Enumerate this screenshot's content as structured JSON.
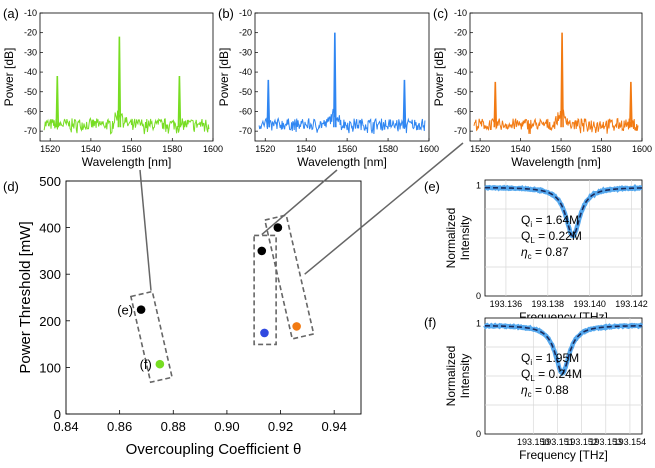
{
  "panels": {
    "a": "(a)",
    "b": "(b)",
    "c": "(c)",
    "d": "(d)",
    "e": "(e)",
    "f": "(f)"
  },
  "colors": {
    "a": "#77dd22",
    "b": "#2f86f2",
    "c": "#f27a12",
    "fit": "#1a2a5a",
    "measured": "#55a8ee"
  },
  "chart_data": [
    {
      "id": "spectrum_a",
      "panel": "(a)",
      "type": "line",
      "xlabel": "Wavelength [nm]",
      "ylabel": "Power [dB]",
      "xlim": [
        1515,
        1600
      ],
      "ylim": [
        -75,
        -10
      ],
      "xticks": [
        1520,
        1540,
        1560,
        1580,
        1600
      ],
      "yticks": [
        -10,
        -20,
        -30,
        -40,
        -50,
        -60,
        -70
      ],
      "noise_floor": -70,
      "peaks": [
        {
          "x": 1523.5,
          "y": -42
        },
        {
          "x": 1554,
          "y": -22
        },
        {
          "x": 1583.5,
          "y": -42
        }
      ],
      "color": "#77dd22"
    },
    {
      "id": "spectrum_b",
      "panel": "(b)",
      "type": "line",
      "xlabel": "Wavelength [nm]",
      "ylabel": "Power [dB]",
      "xlim": [
        1515,
        1600
      ],
      "ylim": [
        -75,
        -10
      ],
      "xticks": [
        1520,
        1540,
        1560,
        1580,
        1600
      ],
      "yticks": [
        -10,
        -20,
        -30,
        -40,
        -50,
        -60,
        -70
      ],
      "noise_floor": -70,
      "peaks": [
        {
          "x": 1521.5,
          "y": -44
        },
        {
          "x": 1554,
          "y": -20
        },
        {
          "x": 1588,
          "y": -44
        }
      ],
      "color": "#2f86f2"
    },
    {
      "id": "spectrum_c",
      "panel": "(c)",
      "type": "line",
      "xlabel": "Wavelength [nm]",
      "ylabel": "Power [dB]",
      "xlim": [
        1515,
        1600
      ],
      "ylim": [
        -75,
        -10
      ],
      "xticks": [
        1520,
        1540,
        1560,
        1580,
        1600
      ],
      "yticks": [
        -10,
        -20,
        -30,
        -40,
        -50,
        -60,
        -70
      ],
      "noise_floor": -70,
      "peaks": [
        {
          "x": 1527.5,
          "y": -45
        },
        {
          "x": 1560.5,
          "y": -20
        },
        {
          "x": 1594.5,
          "y": -45
        }
      ],
      "color": "#f27a12"
    },
    {
      "id": "threshold_vs_overcoupling",
      "panel": "(d)",
      "type": "scatter",
      "xlabel": "Overcoupling Coefficient θ",
      "ylabel": "Power Threshold [mW]",
      "xlim": [
        0.84,
        0.95
      ],
      "ylim": [
        0,
        500
      ],
      "xticks": [
        0.84,
        0.86,
        0.88,
        0.9,
        0.92,
        0.94
      ],
      "xticklabels": [
        "0.84",
        "0.86",
        "0.88",
        "0.90",
        "0.92",
        "0.94"
      ],
      "yticks": [
        0,
        100,
        200,
        300,
        400,
        500
      ],
      "points": [
        {
          "x": 0.868,
          "y": 224,
          "color": "#000000",
          "label": "(e)"
        },
        {
          "x": 0.875,
          "y": 107,
          "color": "#77dd22",
          "label": "(f)"
        },
        {
          "x": 0.913,
          "y": 350,
          "color": "#000000",
          "label": ""
        },
        {
          "x": 0.914,
          "y": 174,
          "color": "#3049e0",
          "label": ""
        },
        {
          "x": 0.919,
          "y": 400,
          "color": "#000000",
          "label": ""
        },
        {
          "x": 0.926,
          "y": 188,
          "color": "#f27a12",
          "label": ""
        }
      ]
    },
    {
      "id": "resonance_e",
      "panel": "(e)",
      "type": "line",
      "xlabel": "Frequency [THz]",
      "ylabel": "Normalized Intensity",
      "xlim": [
        193.135,
        193.1425
      ],
      "ylim": [
        0,
        1.05
      ],
      "xticks": [
        193.136,
        193.138,
        193.14,
        193.142
      ],
      "xticklabels": [
        "193.136",
        "193.138",
        "193.140",
        "193.142"
      ],
      "yticks": [
        0,
        1
      ],
      "dip_center": 193.1392,
      "dip_min": 0.55,
      "annotations": [
        "Qi = 1.64M",
        "QL = 0.22M",
        "ηc = 0.87"
      ]
    },
    {
      "id": "resonance_f",
      "panel": "(f)",
      "type": "line",
      "xlabel": "Frequency [THz]",
      "ylabel": "Normalized Intensity",
      "xlim": [
        193.148,
        193.1545
      ],
      "ylim": [
        0,
        1.05
      ],
      "xticks": [
        193.15,
        193.151,
        193.152,
        193.153,
        193.154
      ],
      "xticklabels": [
        "193.150",
        "193.151",
        "193.152",
        "193.153",
        "193.154"
      ],
      "yticks": [
        0,
        1
      ],
      "dip_center": 193.1512,
      "dip_min": 0.56,
      "annotations": [
        "Qi = 1.95M",
        "QL = 0.24M",
        "ηc = 0.88"
      ]
    }
  ]
}
